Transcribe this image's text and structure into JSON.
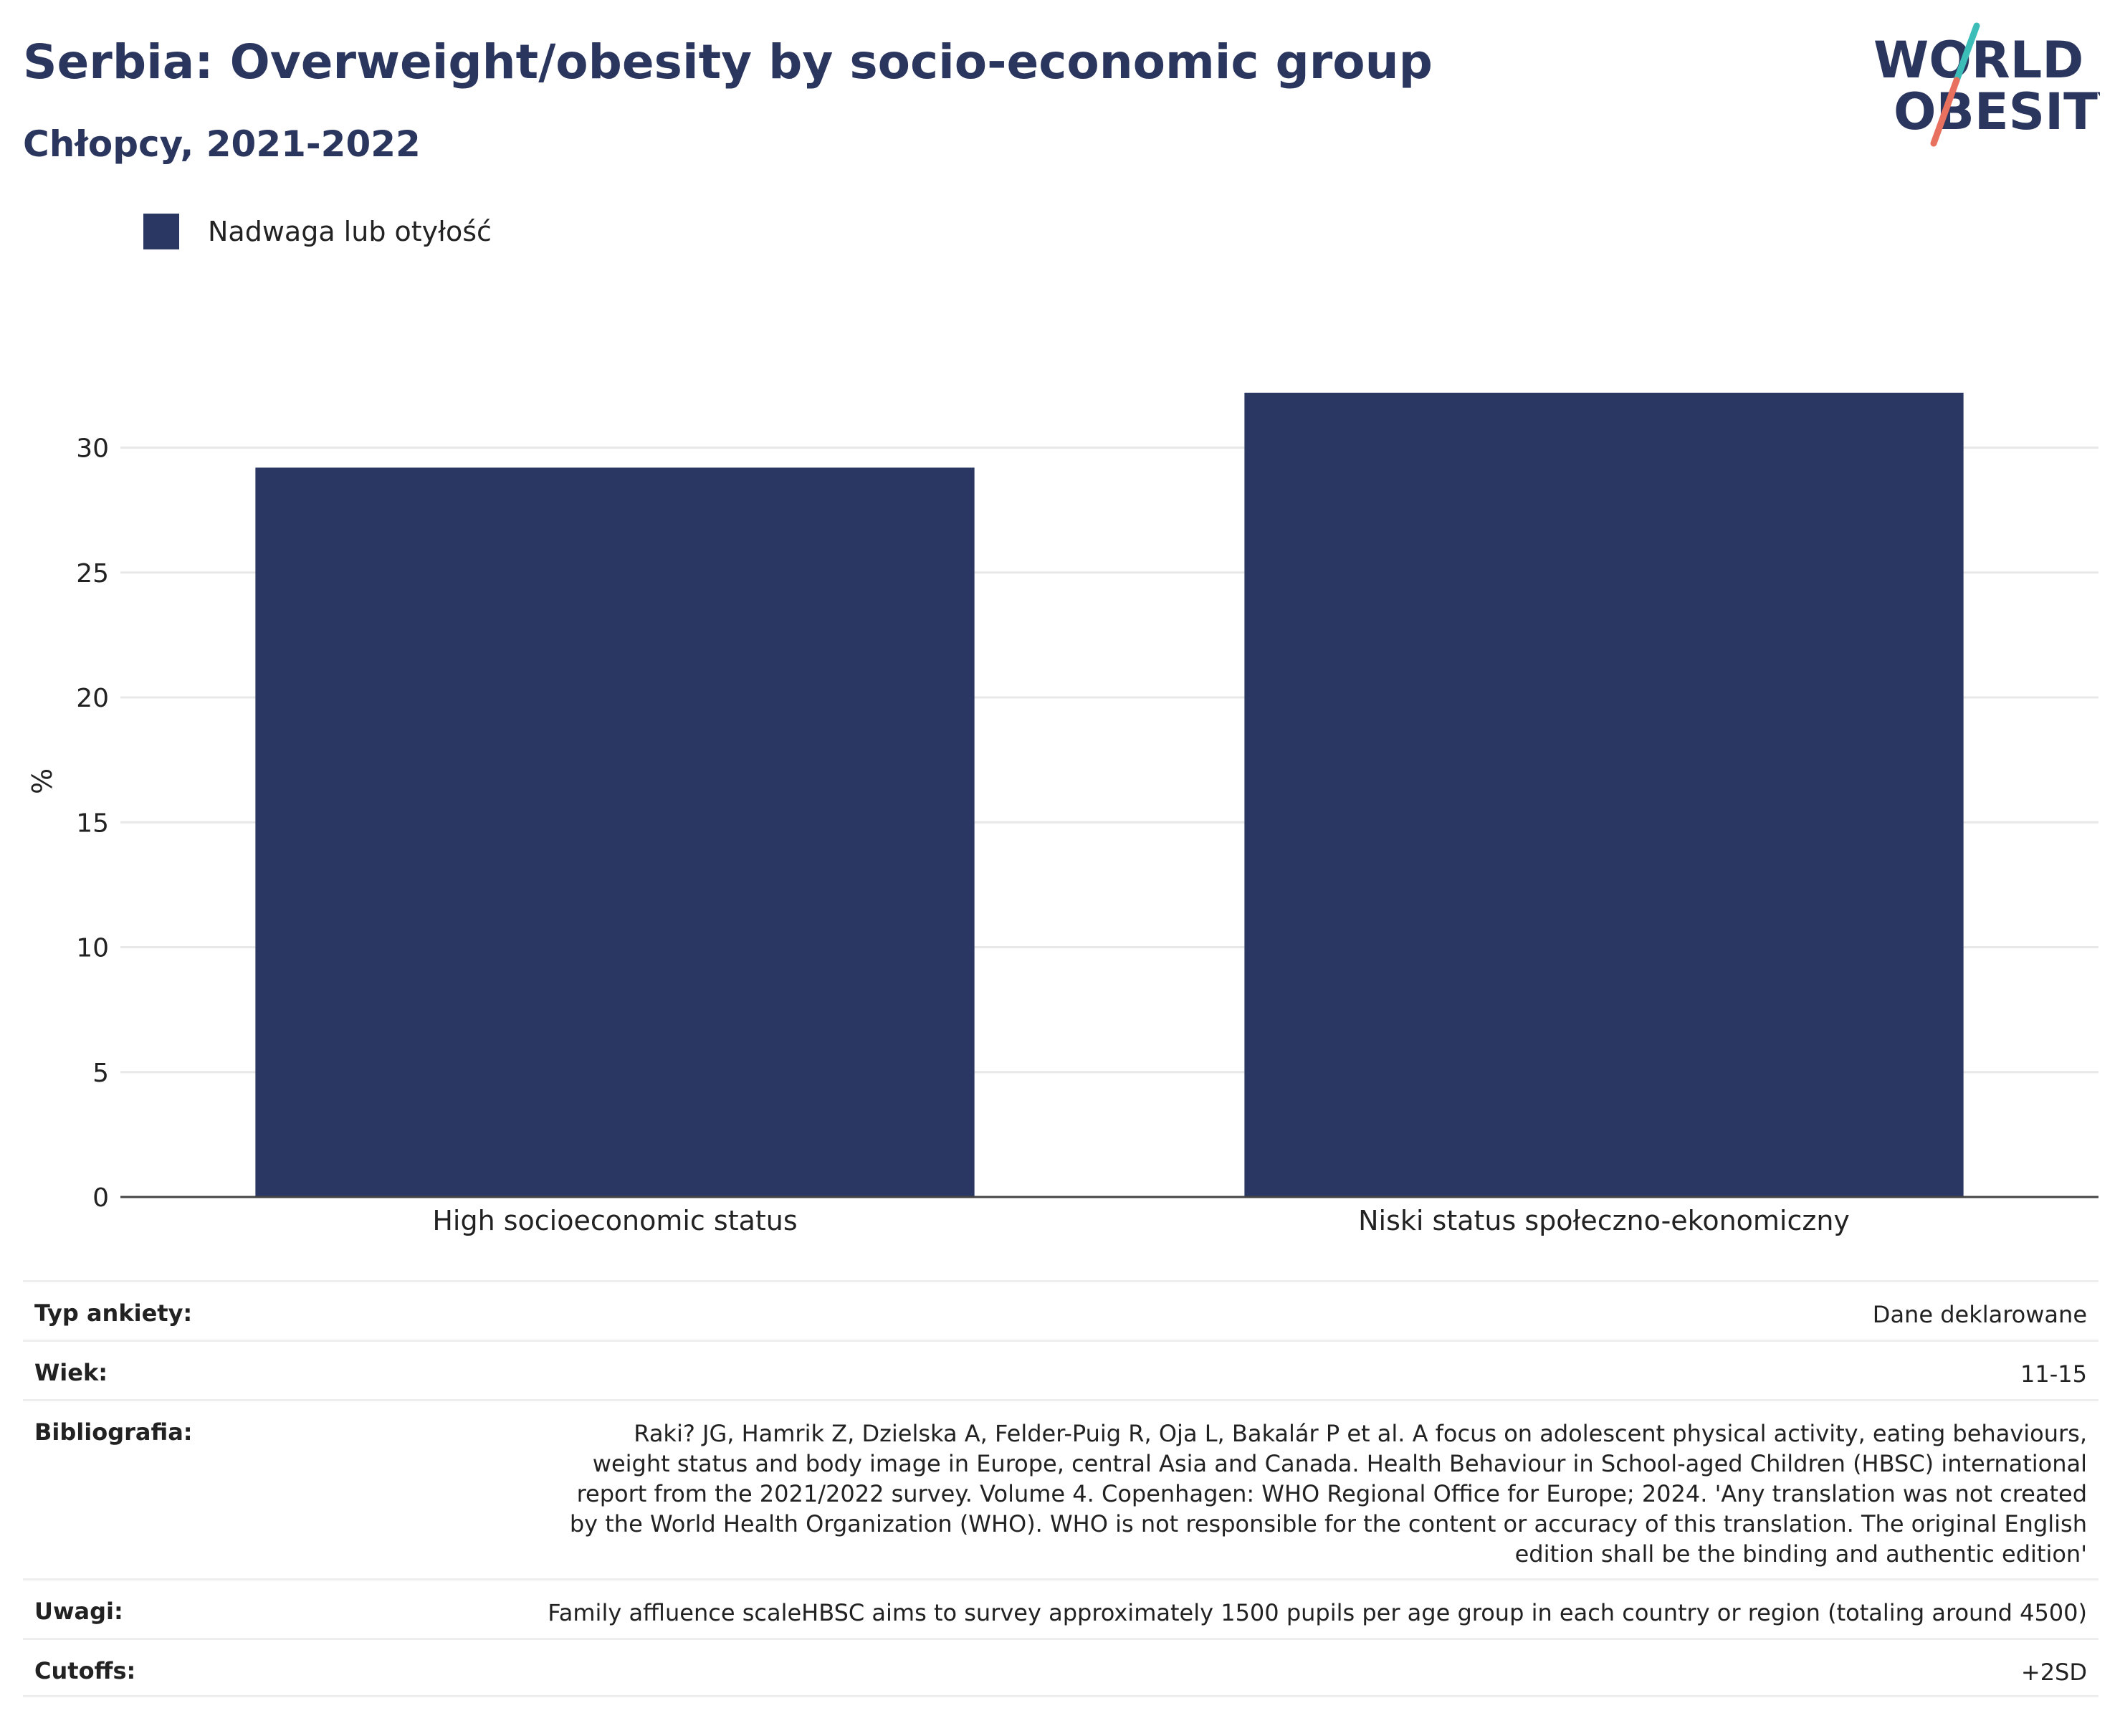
{
  "title": "Serbia: Overweight/obesity by socio-economic group",
  "subtitle": "Chłopcy, 2021-2022",
  "logo": {
    "line1": "WORLD",
    "line2": "OBESITY"
  },
  "colors": {
    "bar": "#2b3763",
    "title": "#2b365f",
    "logo_teal": "#3dbdb8",
    "logo_coral": "#e8705e"
  },
  "chart_data": {
    "type": "bar",
    "categories": [
      "High socioeconomic status",
      "Niski status społeczno-ekonomiczny"
    ],
    "series": [
      {
        "name": "Nadwaga lub otyłość",
        "values": [
          29.2,
          32.2
        ]
      }
    ],
    "xlabel": "",
    "ylabel": "%",
    "ylim": [
      0,
      33
    ],
    "yticks": [
      0,
      5,
      10,
      15,
      20,
      25,
      30
    ],
    "grid": true,
    "legend": "top-left"
  },
  "meta": [
    {
      "key": "Typ ankiety:",
      "value": "Dane deklarowane"
    },
    {
      "key": "Wiek:",
      "value": "11-15"
    },
    {
      "key": "Bibliografia:",
      "value": "Raki? JG, Hamrik Z, Dzielska A, Felder-Puig R, Oja L, Bakalár P et al. A focus on adolescent physical activity, eating behaviours, weight status and body image in Europe, central Asia and Canada. Health Behaviour in School-aged Children (HBSC) international report from the 2021/2022 survey. Volume 4. Copenhagen: WHO Regional Office for Europe; 2024. 'Any translation was not created by the World Health Organization (WHO). WHO is not responsible for the content or accuracy of this translation. The original English edition shall be the binding and authentic edition'"
    },
    {
      "key": "Uwagi:",
      "value": "Family affluence scaleHBSC aims to survey approximately 1500 pupils per age group in each country or region (totaling around 4500)"
    },
    {
      "key": "Cutoffs:",
      "value": "+2SD"
    }
  ]
}
